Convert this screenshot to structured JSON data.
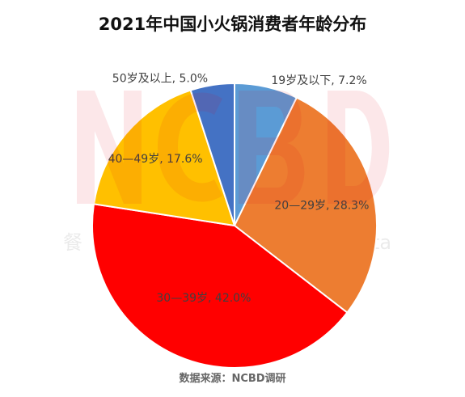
{
  "chart_data": {
    "type": "pie",
    "title": "2021年中国小火锅消费者年龄分布",
    "source": "数据来源：NCBD调研",
    "categories": [
      "19岁及以下",
      "20—29岁",
      "30—39岁",
      "40—49岁",
      "50岁及以上"
    ],
    "values": [
      7.2,
      28.3,
      42.0,
      17.6,
      5.0
    ],
    "labels": [
      "19岁及以下, 7.2%",
      "20—29岁, 28.3%",
      "30—39岁, 42.0%",
      "40—49岁, 17.6%",
      "50岁及以上, 5.0%"
    ],
    "colors": [
      "#5B9BD5",
      "#ED7D31",
      "#FF0000",
      "#FFC000",
      "#4472C4"
    ],
    "start_angle": "12 o'clock",
    "direction": "clockwise",
    "legend": "none",
    "watermark": {
      "logo": "NCBD",
      "text_left": "餐",
      "text_right": "ta"
    }
  }
}
